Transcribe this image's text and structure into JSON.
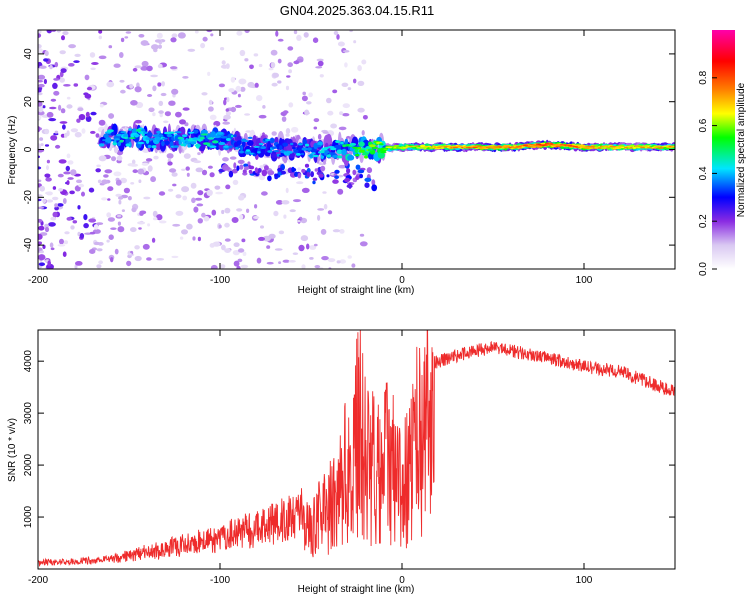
{
  "title": "GN04.2025.363.04.15.R11",
  "colors": {
    "snr_line": "#ee2b2b",
    "axis": "#000000",
    "background": "#ffffff"
  },
  "chart_data": [
    {
      "type": "heatmap",
      "title": "GN04.2025.363.04.15.R11",
      "xlabel": "Height of straight line (km)",
      "ylabel": "Frequency (Hz)",
      "xlim": [
        -200,
        150
      ],
      "ylim": [
        -50,
        50
      ],
      "xticks": [
        -200,
        -100,
        0,
        100
      ],
      "yticks": [
        -40,
        -20,
        0,
        20,
        40
      ],
      "colorbar": {
        "label": "Normalized spectral amplitude",
        "range": [
          0,
          1
        ],
        "ticks": [
          0.0,
          0.2,
          0.4,
          0.6,
          0.8
        ],
        "colormap": [
          "#ffffff",
          "#d9c8f2",
          "#8a2be2",
          "#0000ff",
          "#00e5ff",
          "#00ff00",
          "#ffff00",
          "#ff8000",
          "#ff0000",
          "#ff00aa"
        ]
      },
      "ridge": [
        {
          "x": -165,
          "y": 5,
          "amp": 0.35
        },
        {
          "x": -150,
          "y": 5,
          "amp": 0.45
        },
        {
          "x": -130,
          "y": 4,
          "amp": 0.4
        },
        {
          "x": -110,
          "y": 5,
          "amp": 0.45
        },
        {
          "x": -95,
          "y": 3,
          "amp": 0.4
        },
        {
          "x": -80,
          "y": 1,
          "amp": 0.35
        },
        {
          "x": -60,
          "y": 0,
          "amp": 0.35
        },
        {
          "x": -40,
          "y": 0,
          "amp": 0.4
        },
        {
          "x": -20,
          "y": 0,
          "amp": 0.55
        },
        {
          "x": 0,
          "y": 1,
          "amp": 0.65
        },
        {
          "x": 20,
          "y": 1,
          "amp": 0.7
        },
        {
          "x": 40,
          "y": 1,
          "amp": 0.75
        },
        {
          "x": 60,
          "y": 1,
          "amp": 0.75
        },
        {
          "x": 80,
          "y": 2,
          "amp": 0.8
        },
        {
          "x": 100,
          "y": 1,
          "amp": 0.75
        },
        {
          "x": 125,
          "y": 1,
          "amp": 0.7
        },
        {
          "x": 150,
          "y": 1,
          "amp": 0.7
        }
      ]
    },
    {
      "type": "line",
      "xlabel": "Height of straight line (km)",
      "ylabel": "SNR (10 * v/v)",
      "xlim": [
        -200,
        150
      ],
      "ylim": [
        0,
        4600
      ],
      "xticks": [
        -200,
        -100,
        0,
        100
      ],
      "yticks": [
        1000,
        2000,
        3000,
        4000
      ],
      "series": [
        {
          "name": "SNR",
          "color": "#ee2b2b",
          "x": [
            -200,
            -180,
            -160,
            -140,
            -120,
            -100,
            -80,
            -60,
            -50,
            -40,
            -35,
            -30,
            -25,
            -22,
            -20,
            -15,
            -10,
            -5,
            0,
            5,
            10,
            15,
            20,
            30,
            40,
            50,
            60,
            80,
            100,
            120,
            150
          ],
          "y": [
            100,
            120,
            180,
            300,
            450,
            600,
            800,
            1000,
            1200,
            1600,
            2200,
            2600,
            3400,
            4200,
            3000,
            2600,
            3000,
            2600,
            2300,
            2800,
            3600,
            3900,
            4000,
            4100,
            4200,
            4250,
            4200,
            4050,
            3900,
            3800,
            3400
          ]
        }
      ]
    }
  ]
}
